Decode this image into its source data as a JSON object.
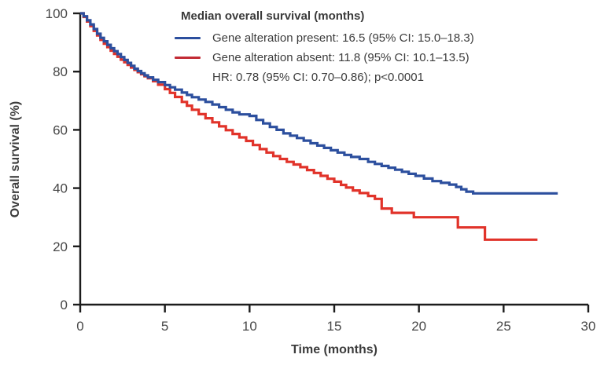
{
  "chart_data": {
    "type": "line",
    "subtype": "kaplan-meier-step",
    "xlabel": "Time (months)",
    "ylabel": "Overall survival (%)",
    "xlim": [
      0,
      30
    ],
    "ylim": [
      0,
      100
    ],
    "xticks": [
      0,
      5,
      10,
      15,
      20,
      25,
      30
    ],
    "yticks": [
      0,
      20,
      40,
      60,
      80,
      100
    ],
    "grid": false,
    "axis_color": "#1c1c1c",
    "tick_label_color": "#474747",
    "legend": {
      "position": "top-center",
      "title": "Median overall survival (months)",
      "entries": [
        {
          "label": "Gene alteration present: 16.5 (95% CI: 15.0–18.3)",
          "swatch_color": "#2C4F9E"
        },
        {
          "label": "Gene alteration absent: 11.8 (95% CI: 10.1–13.5)",
          "swatch_color": "#C22B35"
        }
      ],
      "note": "HR: 0.78 (95% CI: 0.70–0.86); p<0.0001"
    },
    "series": [
      {
        "name": "Gene alteration present",
        "color": "#2C4F9E",
        "points": [
          [
            0,
            100
          ],
          [
            0.2,
            99
          ],
          [
            0.4,
            97.6
          ],
          [
            0.6,
            96.2
          ],
          [
            0.8,
            94.6
          ],
          [
            1,
            93
          ],
          [
            1.2,
            91.6
          ],
          [
            1.4,
            90.4
          ],
          [
            1.6,
            89.2
          ],
          [
            1.8,
            88
          ],
          [
            2,
            87
          ],
          [
            2.2,
            86
          ],
          [
            2.4,
            85
          ],
          [
            2.6,
            84
          ],
          [
            2.8,
            83
          ],
          [
            3,
            82
          ],
          [
            3.2,
            81
          ],
          [
            3.4,
            80.2
          ],
          [
            3.6,
            79.4
          ],
          [
            3.8,
            78.7
          ],
          [
            4,
            78
          ],
          [
            4.3,
            77.2
          ],
          [
            4.6,
            76.4
          ],
          [
            5,
            75.4
          ],
          [
            5.3,
            74.6
          ],
          [
            5.6,
            73.8
          ],
          [
            6,
            72.8
          ],
          [
            6.3,
            72
          ],
          [
            6.6,
            71.2
          ],
          [
            7,
            70.4
          ],
          [
            7.4,
            69.6
          ],
          [
            7.8,
            68.7
          ],
          [
            8.2,
            67.8
          ],
          [
            8.6,
            66.9
          ],
          [
            9,
            66
          ],
          [
            9.4,
            65.3
          ],
          [
            10,
            64.8
          ],
          [
            10.4,
            63.4
          ],
          [
            10.8,
            62.2
          ],
          [
            11.2,
            61
          ],
          [
            11.6,
            60
          ],
          [
            12,
            58.8
          ],
          [
            12.4,
            58
          ],
          [
            12.8,
            57.2
          ],
          [
            13.2,
            56.3
          ],
          [
            13.6,
            55.4
          ],
          [
            14,
            54.6
          ],
          [
            14.4,
            53.8
          ],
          [
            14.8,
            53
          ],
          [
            15.2,
            52.2
          ],
          [
            15.6,
            51.4
          ],
          [
            16,
            50.7
          ],
          [
            16.5,
            50
          ],
          [
            17,
            49
          ],
          [
            17.4,
            48.3
          ],
          [
            17.8,
            47.6
          ],
          [
            18.2,
            47
          ],
          [
            18.6,
            46.3
          ],
          [
            19,
            45.6
          ],
          [
            19.4,
            44.9
          ],
          [
            19.8,
            44.2
          ],
          [
            20.3,
            43.3
          ],
          [
            20.8,
            42.4
          ],
          [
            21.3,
            41.8
          ],
          [
            21.8,
            41.2
          ],
          [
            22.2,
            40.4
          ],
          [
            22.5,
            39.6
          ],
          [
            22.8,
            38.8
          ],
          [
            23.2,
            38.2
          ],
          [
            28.2,
            38.2
          ]
        ]
      },
      {
        "name": "Gene alteration absent",
        "color": "#E1332A",
        "points": [
          [
            0,
            100
          ],
          [
            0.2,
            98.8
          ],
          [
            0.4,
            97.2
          ],
          [
            0.6,
            95.6
          ],
          [
            0.8,
            94
          ],
          [
            1,
            92.4
          ],
          [
            1.2,
            90.9
          ],
          [
            1.4,
            89.6
          ],
          [
            1.6,
            88.4
          ],
          [
            1.8,
            87.2
          ],
          [
            2,
            86.1
          ],
          [
            2.2,
            85.1
          ],
          [
            2.4,
            84.1
          ],
          [
            2.6,
            83.2
          ],
          [
            2.8,
            82.3
          ],
          [
            3,
            81.4
          ],
          [
            3.2,
            80.6
          ],
          [
            3.4,
            79.8
          ],
          [
            3.6,
            79.1
          ],
          [
            3.8,
            78.4
          ],
          [
            4,
            77.7
          ],
          [
            4.3,
            76.7
          ],
          [
            4.6,
            75.5
          ],
          [
            5,
            74
          ],
          [
            5.3,
            72.7
          ],
          [
            5.6,
            71.3
          ],
          [
            6,
            69.6
          ],
          [
            6.3,
            68.3
          ],
          [
            6.6,
            66.9
          ],
          [
            7,
            65.4
          ],
          [
            7.4,
            64
          ],
          [
            7.8,
            62.6
          ],
          [
            8.2,
            61.2
          ],
          [
            8.6,
            59.9
          ],
          [
            9,
            58.6
          ],
          [
            9.4,
            57.4
          ],
          [
            9.8,
            56.2
          ],
          [
            10.2,
            54.8
          ],
          [
            10.6,
            53.4
          ],
          [
            11,
            52.2
          ],
          [
            11.4,
            51
          ],
          [
            11.8,
            50
          ],
          [
            12.2,
            49
          ],
          [
            12.6,
            48.1
          ],
          [
            13,
            47.2
          ],
          [
            13.4,
            46.2
          ],
          [
            13.8,
            45.2
          ],
          [
            14.2,
            44.2
          ],
          [
            14.6,
            43.2
          ],
          [
            15,
            42.2
          ],
          [
            15.4,
            41.1
          ],
          [
            15.7,
            40.2
          ],
          [
            16.1,
            39.2
          ],
          [
            16.5,
            38.3
          ],
          [
            17,
            37.3
          ],
          [
            17.4,
            36.3
          ],
          [
            17.8,
            33
          ],
          [
            18.4,
            31.5
          ],
          [
            19.7,
            30
          ],
          [
            22.3,
            26.5
          ],
          [
            23.9,
            22.3
          ],
          [
            27,
            22.3
          ]
        ]
      }
    ]
  }
}
